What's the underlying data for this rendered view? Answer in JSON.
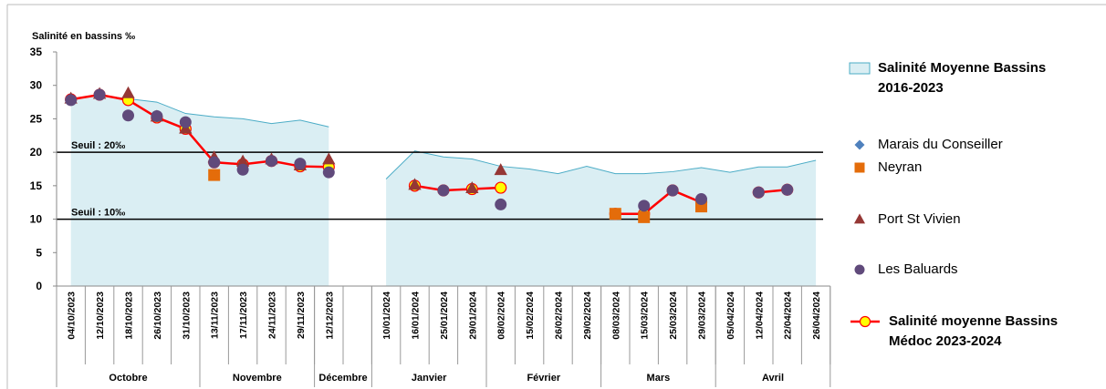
{
  "chart_data": {
    "type": "line",
    "y_label": "Salinité en bassins ‰",
    "categories": [
      "04/10/2023",
      "12/10/2023",
      "18/10/2023",
      "26/10/2023",
      "31/10/2023",
      "13/11/2023",
      "17/11/2023",
      "24/11/2023",
      "29/11/2023",
      "12/12/2023",
      null,
      "10/01/2024",
      "16/01/2024",
      "25/01/2024",
      "29/01/2024",
      "08/02/2024",
      "15/02/2024",
      "26/02/2024",
      "29/02/2024",
      "08/03/2024",
      "15/03/2024",
      "25/03/2024",
      "29/03/2024",
      "05/04/2024",
      "12/04/2024",
      "22/04/2024",
      "26/04/2024"
    ],
    "months": [
      {
        "name": "Octobre",
        "span": 5
      },
      {
        "name": "Novembre",
        "span": 4
      },
      {
        "name": "Décembre",
        "span": 2
      },
      {
        "name": "Janvier",
        "span": 4
      },
      {
        "name": "Février",
        "span": 4
      },
      {
        "name": "Mars",
        "span": 4
      },
      {
        "name": "Avril",
        "span": 4
      }
    ],
    "ylim": [
      0,
      35
    ],
    "yticks": [
      0,
      5,
      10,
      15,
      20,
      25,
      30,
      35
    ],
    "legend": "right",
    "annotations": [
      {
        "text": "Seuil : 20‰",
        "value": 20
      },
      {
        "text": "Seuil : 10‰",
        "value": 10
      }
    ],
    "series": [
      {
        "name": "Salinité Moyenne Bassins 2016-2023",
        "kind": "area",
        "color": "#daeef3",
        "edge": "#4bacc6",
        "values": [
          28,
          28.5,
          28,
          27.5,
          25.8,
          25.3,
          25,
          24.3,
          24.8,
          23.8,
          null,
          16,
          20.2,
          19.3,
          19,
          17.9,
          17.5,
          16.8,
          17.9,
          16.8,
          16.8,
          17.1,
          17.7,
          17,
          17.8,
          17.8,
          18.8
        ]
      },
      {
        "name": "Marais du Conseiller",
        "kind": "scatter",
        "marker": "diamond",
        "color": "#4f81bd",
        "values": [
          null,
          null,
          null,
          null,
          null,
          null,
          null,
          null,
          null,
          null,
          null,
          null,
          null,
          null,
          null,
          null,
          null,
          null,
          null,
          null,
          null,
          null,
          null,
          null,
          null,
          null,
          null
        ]
      },
      {
        "name": "Neyran",
        "kind": "scatter",
        "marker": "square",
        "color": "#e46c0a",
        "values": [
          null,
          null,
          null,
          null,
          null,
          16.6,
          null,
          null,
          null,
          null,
          null,
          null,
          null,
          null,
          null,
          null,
          null,
          null,
          null,
          10.8,
          10.3,
          null,
          11.9,
          null,
          null,
          null,
          null
        ]
      },
      {
        "name": "Port St Vivien",
        "kind": "scatter",
        "marker": "triangle",
        "color": "#953735",
        "values": [
          28,
          28.7,
          28.8,
          25.3,
          23.5,
          19.2,
          18.6,
          18.9,
          18,
          18.9,
          null,
          null,
          15.1,
          null,
          14.6,
          17.3,
          null,
          null,
          null,
          null,
          null,
          null,
          null,
          null,
          null,
          null,
          null
        ]
      },
      {
        "name": "Les Baluards",
        "kind": "scatter",
        "marker": "circle",
        "color": "#604a7b",
        "values": [
          27.8,
          28.6,
          25.5,
          25.4,
          24.5,
          18.5,
          17.4,
          18.7,
          18.3,
          17,
          null,
          null,
          null,
          14.3,
          null,
          12.2,
          null,
          null,
          null,
          null,
          12,
          14.3,
          13,
          null,
          14,
          14.4,
          null
        ]
      },
      {
        "name": "Salinité moyenne Bassins Médoc 2023-2024",
        "kind": "line",
        "marker": "circle",
        "color": "#ff0000",
        "marker_color": "#ffff00",
        "values": [
          27.9,
          28.6,
          27.8,
          25.2,
          23.5,
          18.5,
          18.2,
          18.7,
          17.9,
          17.8,
          null,
          null,
          15,
          14.3,
          14.5,
          14.7,
          null,
          null,
          null,
          10.8,
          10.8,
          14.3,
          12.5,
          null,
          14,
          14.4,
          null
        ]
      }
    ]
  }
}
